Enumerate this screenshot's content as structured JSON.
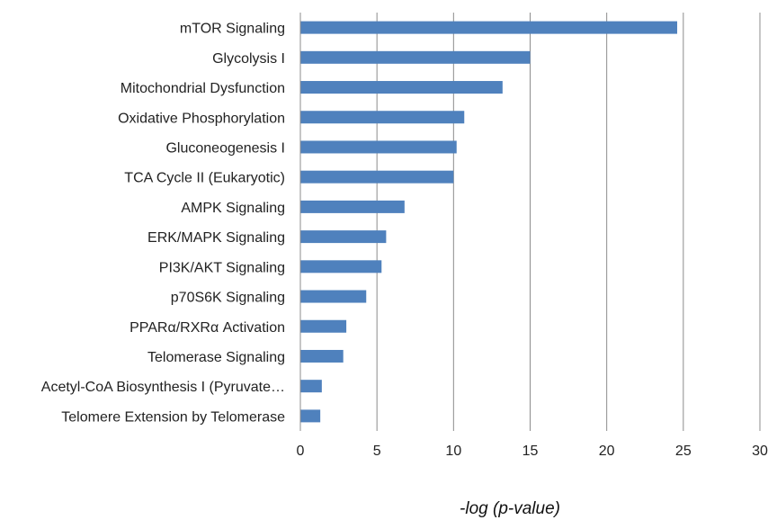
{
  "chart_data": {
    "type": "bar",
    "orientation": "horizontal",
    "categories": [
      "mTOR Signaling",
      "Glycolysis I",
      "Mitochondrial Dysfunction",
      "Oxidative Phosphorylation",
      "Gluconeogenesis I",
      "TCA Cycle II (Eukaryotic)",
      "AMPK Signaling",
      "ERK/MAPK Signaling",
      "PI3K/AKT Signaling",
      "p70S6K Signaling",
      "PPARα/RXRα Activation",
      "Telomerase Signaling",
      "Acetyl-CoA Biosynthesis I (Pyruvate…",
      "Telomere Extension by Telomerase"
    ],
    "values": [
      24.6,
      15.0,
      13.2,
      10.7,
      10.2,
      10.0,
      6.8,
      5.6,
      5.3,
      4.3,
      3.0,
      2.8,
      1.4,
      1.3
    ],
    "xlabel": "-log (p-value)",
    "xlim": [
      0,
      30
    ],
    "xticks": [
      0,
      5,
      10,
      15,
      20,
      25,
      30
    ],
    "grid": true,
    "bar_color": "#4f81bd"
  }
}
